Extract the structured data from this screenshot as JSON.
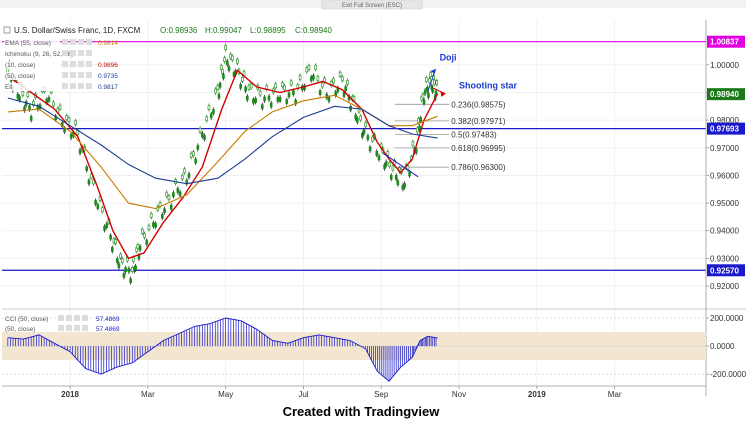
{
  "header": {
    "exit_button": "Exit Full Screen (ESC)",
    "symbol_title": "U.S. Dollar/Swiss Franc, 1D, FXCM",
    "ohlc": [
      "O:0.98936",
      "H:0.99047",
      "L:0.98895",
      "C:0.98940"
    ]
  },
  "indicators": [
    {
      "label": "EMA (55, close)",
      "value": "0.9814",
      "color": "#c77a00"
    },
    {
      "label": "Ichimoku (9, 26, 52, 26)",
      "value": "",
      "color": "#888888"
    },
    {
      "label": "(10, close)",
      "value": "0.9896",
      "color": "#d00000"
    },
    {
      "label": "(50, close)",
      "value": "0.9735",
      "color": "#1e3c96"
    },
    {
      "label": "Ell",
      "value": "0.9817",
      "color": "#1e3c96"
    }
  ],
  "cci_labels": [
    {
      "label": "CCI (50, close)",
      "value": "57.4869"
    },
    {
      "label": "(50, close)",
      "value": "57.4869"
    }
  ],
  "annotations": {
    "doji": "Doji",
    "shooting_star": "Shooting star"
  },
  "fib_levels": [
    {
      "label": "0.236(0.98575)",
      "price": 0.98575
    },
    {
      "label": "0.382(0.97971)",
      "price": 0.97971
    },
    {
      "label": "0.5(0.97483)",
      "price": 0.97483
    },
    {
      "label": "0.618(0.96995)",
      "price": 0.96995
    },
    {
      "label": "0.786(0.96300)",
      "price": 0.963
    }
  ],
  "price_tags": [
    {
      "text": "1.00837",
      "price": 1.00837,
      "color": "#e000e0"
    },
    {
      "text": "0.98940",
      "price": 0.9894,
      "color": "#1a7a1a"
    },
    {
      "text": "0.97693",
      "price": 0.97693,
      "color": "#1a1acc"
    },
    {
      "text": "0.92570",
      "price": 0.9257,
      "color": "#1a1acc"
    }
  ],
  "horizontal_lines": [
    {
      "price": 1.00837,
      "color": "#e000e0"
    },
    {
      "price": 0.97693,
      "color": "#1a1acc"
    },
    {
      "price": 0.9257,
      "color": "#1a1acc"
    }
  ],
  "chart_data": {
    "type": "line",
    "title": "U.S. Dollar/Swiss Franc, 1D, FXCM",
    "price_axis": {
      "ticks": [
        1.0,
        0.99,
        0.98,
        0.97,
        0.96,
        0.95,
        0.94,
        0.93,
        0.92
      ],
      "tick_labels": [
        "1.00000",
        "0.99000",
        "0.98000",
        "0.97000",
        "0.96000",
        "0.95000",
        "0.94000",
        "0.93000",
        "0.92000"
      ],
      "ylim": [
        0.9135,
        1.0155
      ]
    },
    "time_axis": {
      "labels": [
        "2018",
        "Mar",
        "May",
        "Jul",
        "Sep",
        "Nov",
        "2019",
        "Mar"
      ],
      "month_index": [
        0,
        2,
        4,
        6,
        8,
        10,
        12,
        14
      ],
      "xlim": [
        -1.75,
        16.35
      ]
    },
    "series": [
      {
        "name": "USD/CHF",
        "color": "#1a8a1a",
        "months": [
          -1.6,
          -1.3,
          -1.0,
          -0.6,
          -0.2,
          0.2,
          0.6,
          1.0,
          1.3,
          1.6,
          1.8,
          2.2,
          2.6,
          3.0,
          3.4,
          3.8,
          4.0,
          4.3,
          4.6,
          5.0,
          5.4,
          5.8,
          6.2,
          6.6,
          7.0,
          7.3,
          7.6,
          8.0,
          8.3,
          8.6,
          8.9,
          9.1,
          9.3,
          9.45
        ],
        "values": [
          0.998,
          0.99,
          0.984,
          0.99,
          0.98,
          0.975,
          0.955,
          0.94,
          0.928,
          0.925,
          0.935,
          0.945,
          0.952,
          0.96,
          0.975,
          0.99,
          1.003,
          0.998,
          0.99,
          0.988,
          0.99,
          0.99,
          0.998,
          0.99,
          0.994,
          0.985,
          0.975,
          0.968,
          0.962,
          0.958,
          0.972,
          0.99,
          0.994,
          0.9894
        ]
      },
      {
        "name": "",
        "color": "#d00000",
        "months": [
          -1.6,
          -1.0,
          -0.4,
          0.2,
          0.7,
          1.1,
          1.5,
          1.9,
          2.4,
          2.9,
          3.4,
          3.9,
          4.3,
          4.8,
          5.4,
          6.0,
          6.5,
          7.0,
          7.5,
          7.9,
          8.2,
          8.5,
          8.8,
          9.1,
          9.45
        ],
        "values": [
          0.996,
          0.99,
          0.984,
          0.974,
          0.956,
          0.94,
          0.93,
          0.932,
          0.943,
          0.952,
          0.963,
          0.984,
          0.998,
          0.992,
          0.99,
          0.992,
          0.994,
          0.991,
          0.984,
          0.972,
          0.966,
          0.961,
          0.966,
          0.98,
          0.9896
        ]
      },
      {
        "name": "",
        "color": "#c77a00",
        "months": [
          -1.6,
          -0.8,
          0.0,
          0.8,
          1.5,
          2.2,
          3.0,
          3.8,
          4.5,
          5.2,
          6.0,
          6.8,
          7.5,
          8.2,
          8.8,
          9.45
        ],
        "values": [
          0.983,
          0.984,
          0.976,
          0.963,
          0.95,
          0.948,
          0.953,
          0.965,
          0.976,
          0.983,
          0.987,
          0.989,
          0.984,
          0.978,
          0.978,
          0.9814
        ]
      },
      {
        "name": "",
        "color": "#1e3c96",
        "months": [
          -1.6,
          -0.8,
          0.0,
          0.8,
          1.5,
          2.2,
          3.0,
          3.8,
          4.5,
          5.2,
          6.0,
          6.8,
          7.5,
          8.2,
          8.8,
          9.45
        ],
        "values": [
          0.988,
          0.985,
          0.978,
          0.971,
          0.964,
          0.959,
          0.957,
          0.959,
          0.966,
          0.974,
          0.981,
          0.985,
          0.984,
          0.978,
          0.975,
          0.9735
        ]
      }
    ],
    "cci": {
      "name": "CCI (50, close)",
      "ticks": [
        200,
        0,
        -200
      ],
      "tick_labels": [
        "200.0000",
        "0.0000",
        "-200.0000"
      ],
      "band": [
        100,
        -100
      ],
      "ylim": [
        -270,
        250
      ],
      "months": [
        -1.6,
        -1.2,
        -0.8,
        -0.4,
        0.0,
        0.4,
        0.8,
        1.2,
        1.6,
        2.0,
        2.4,
        2.8,
        3.2,
        3.6,
        4.0,
        4.4,
        4.8,
        5.2,
        5.6,
        6.0,
        6.4,
        6.8,
        7.2,
        7.6,
        7.9,
        8.2,
        8.5,
        8.8,
        9.0,
        9.2,
        9.45
      ],
      "values": [
        60,
        50,
        80,
        20,
        -40,
        -160,
        -200,
        -150,
        -120,
        -40,
        40,
        90,
        140,
        160,
        200,
        180,
        120,
        40,
        20,
        60,
        80,
        60,
        40,
        -20,
        -180,
        -250,
        -150,
        -80,
        40,
        70,
        57.49
      ]
    }
  },
  "footer": {
    "credit": "Created with Tradingview"
  }
}
